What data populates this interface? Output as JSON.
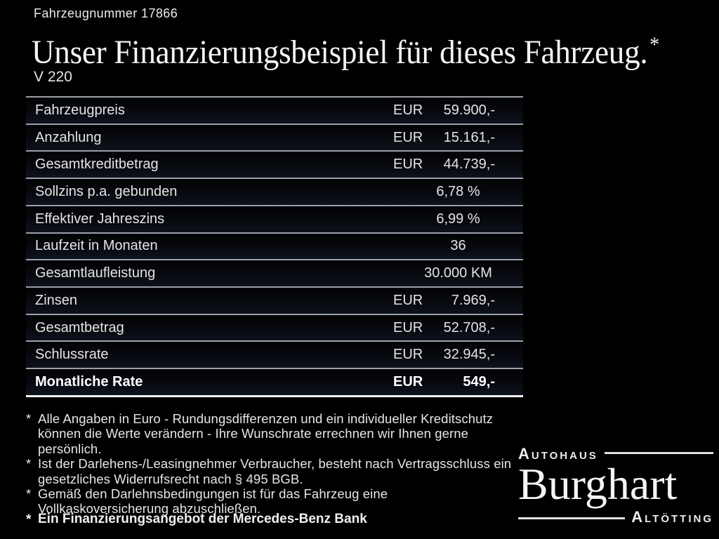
{
  "header": {
    "vehicle_number": "Fahrzeugnummer 17866",
    "title": "Unser Finanzierungsbeispiel für dieses Fahrzeug.",
    "title_asterisk": "*",
    "model": "V 220"
  },
  "table": {
    "rows": [
      {
        "label": "Fahrzeugpreis",
        "currency": "EUR",
        "value": "59.900,-",
        "bold": false
      },
      {
        "label": "Anzahlung",
        "currency": "EUR",
        "value": "15.161,-",
        "bold": false
      },
      {
        "label": "Gesamtkreditbetrag",
        "currency": "EUR",
        "value": "44.739,-",
        "bold": false
      },
      {
        "label": "Sollzins p.a. gebunden",
        "currency": "",
        "value": "6,78 %",
        "bold": false
      },
      {
        "label": "Effektiver Jahreszins",
        "currency": "",
        "value": "6,99 %",
        "bold": false
      },
      {
        "label": "Laufzeit in Monaten",
        "currency": "",
        "value": "36",
        "bold": false
      },
      {
        "label": "Gesamtlaufleistung",
        "currency": "",
        "value": "30.000 KM",
        "bold": false
      },
      {
        "label": "Zinsen",
        "currency": "EUR",
        "value": "7.969,-",
        "bold": false
      },
      {
        "label": "Gesamtbetrag",
        "currency": "EUR",
        "value": "52.708,-",
        "bold": false
      },
      {
        "label": "Schlussrate",
        "currency": "EUR",
        "value": "32.945,-",
        "bold": false
      },
      {
        "label": "Monatliche Rate",
        "currency": "EUR",
        "value": "549,-",
        "bold": true
      }
    ]
  },
  "footnotes": {
    "marker": "*",
    "items": [
      {
        "lines": [
          "Alle Angaben in Euro - Rundungsdifferenzen und ein individueller Kreditschutz",
          "können die Werte verändern - Ihre Wunschrate errechnen wir Ihnen gerne persönlich."
        ]
      },
      {
        "lines": [
          "Ist der Darlehens-/Leasingnehmer Verbraucher, besteht nach Vertragsschluss ein",
          "gesetzliches Widerrufsrecht nach § 495 BGB."
        ]
      },
      {
        "lines": [
          "Gemäß den Darlehnsbedingungen ist für das Fahrzeug eine",
          "Vollkaskoversicherung abzuschließen."
        ]
      }
    ],
    "bank_note": "Ein Finanzierungsangebot der Mercedes-Benz Bank"
  },
  "logo": {
    "top": "Autohaus",
    "name": "Burghart",
    "bottom": "Altötting"
  },
  "colors": {
    "background": "#000000",
    "text": "#e8e8e8",
    "separator_line": "#9aa0ac",
    "bottom_line": "#f2f2f2"
  }
}
